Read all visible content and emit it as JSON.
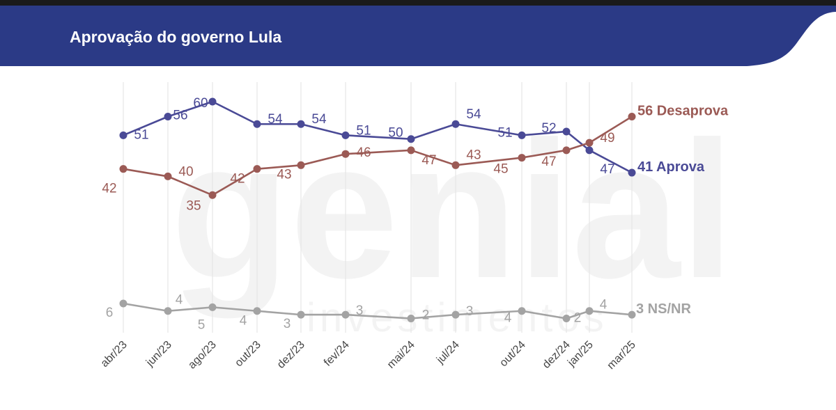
{
  "header": {
    "title": "Aprovação do governo Lula"
  },
  "watermark": {
    "brand": "genial",
    "sub": "investimentos"
  },
  "colors": {
    "header": "#2b3a86",
    "aprova": "#4a4a96",
    "desaprova": "#9b5a55",
    "nsnr": "#a3a3a3",
    "grid": "#e6e6e6"
  },
  "chart_data": {
    "type": "line",
    "title": "Aprovação do governo Lula",
    "xlabel": "",
    "ylabel": "",
    "ylim": [
      0,
      65
    ],
    "grid": "vertical",
    "x": [
      "abr/23",
      "jun/23",
      "ago/23",
      "out/23",
      "dez/23",
      "fev/24",
      "mai/24",
      "jul/24",
      "out/24",
      "dez/24",
      "jan/25",
      "mar/25"
    ],
    "series": [
      {
        "key": "aprova",
        "values": [
          51,
          56,
          60,
          54,
          54,
          51,
          50,
          54,
          51,
          52,
          47,
          41
        ],
        "labels": [
          "51",
          "56",
          "60",
          "54",
          "54",
          "51",
          "50",
          "54",
          "51",
          "52",
          "47",
          "41"
        ],
        "end_label": "Aprova"
      },
      {
        "key": "desaprova",
        "values": [
          42,
          40,
          35,
          42,
          43,
          46,
          47,
          43,
          45,
          47,
          49,
          56
        ],
        "labels": [
          "42",
          "40",
          "35",
          "42",
          "43",
          "46",
          "47",
          "43",
          "45",
          "47",
          "49",
          "56"
        ],
        "end_label": "Desaprova"
      },
      {
        "key": "nsnr",
        "values": [
          6,
          4,
          5,
          4,
          3,
          3,
          2,
          3,
          4,
          2,
          4,
          3
        ],
        "labels": [
          "6",
          "4",
          "5",
          "4",
          "3",
          "3",
          "2",
          "3",
          "4",
          "2",
          "4",
          "3"
        ],
        "end_label": "NS/NR"
      }
    ]
  }
}
